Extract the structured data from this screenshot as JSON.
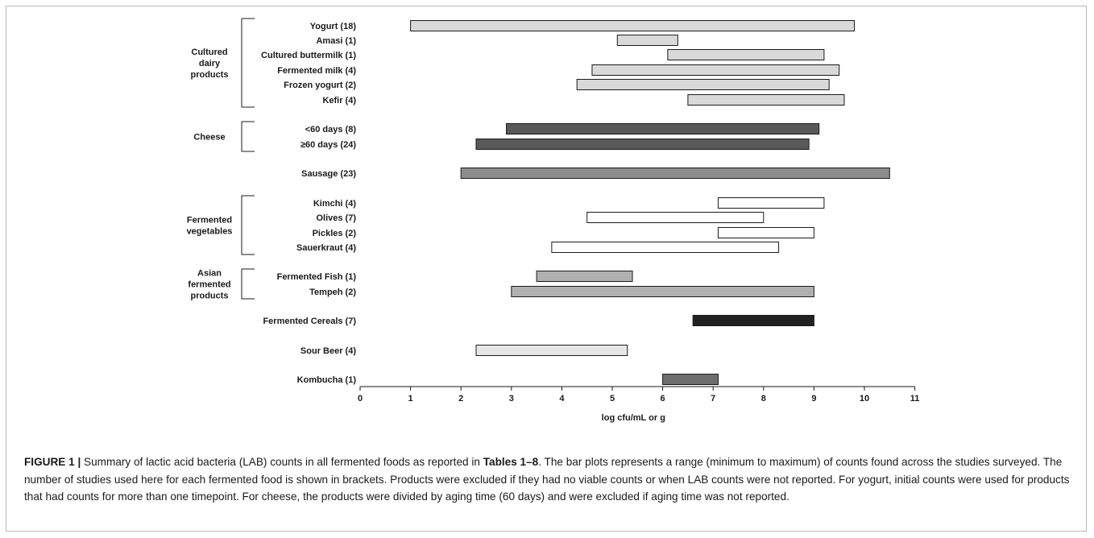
{
  "chart_data": {
    "type": "bar",
    "orientation": "horizontal-range",
    "xlabel": "log cfu/mL or g",
    "xlim": [
      0,
      11
    ],
    "xticks": [
      0,
      1,
      2,
      3,
      4,
      5,
      6,
      7,
      8,
      9,
      10,
      11
    ],
    "groups": [
      {
        "name": "Cultured\ndairy\nproducts",
        "bracket_rows": [
          0,
          5
        ]
      },
      {
        "name": "Cheese",
        "bracket_rows": [
          6,
          7
        ]
      },
      {
        "name": "Fermented\nvegetables",
        "bracket_rows": [
          9,
          12
        ]
      },
      {
        "name": "Asian\nfermented\nproducts",
        "bracket_rows": [
          13,
          14
        ]
      }
    ],
    "series": [
      {
        "category": "Yogurt (18)",
        "min": 1.0,
        "max": 9.8,
        "color": "#d9d9d9"
      },
      {
        "category": "Amasi (1)",
        "min": 5.1,
        "max": 6.3,
        "color": "#d9d9d9"
      },
      {
        "category": "Cultured buttermilk (1)",
        "min": 6.1,
        "max": 9.2,
        "color": "#d9d9d9"
      },
      {
        "category": "Fermented milk (4)",
        "min": 4.6,
        "max": 9.5,
        "color": "#d9d9d9"
      },
      {
        "category": "Frozen yogurt (2)",
        "min": 4.3,
        "max": 9.3,
        "color": "#d9d9d9"
      },
      {
        "category": "Kefir (4)",
        "min": 6.5,
        "max": 9.6,
        "color": "#d9d9d9"
      },
      {
        "category": "<60 days (8)",
        "min": 2.9,
        "max": 9.1,
        "color": "#595959"
      },
      {
        "category": "≥60 days (24)",
        "min": 2.3,
        "max": 8.9,
        "color": "#595959"
      },
      {
        "category": "Sausage (23)",
        "min": 2.0,
        "max": 10.5,
        "color": "#8c8c8c"
      },
      {
        "category": "Kimchi (4)",
        "min": 7.1,
        "max": 9.2,
        "color": "#ffffff"
      },
      {
        "category": "Olives (7)",
        "min": 4.5,
        "max": 8.0,
        "color": "#ffffff"
      },
      {
        "category": "Pickles (2)",
        "min": 7.1,
        "max": 9.0,
        "color": "#ffffff"
      },
      {
        "category": "Sauerkraut (4)",
        "min": 3.8,
        "max": 8.3,
        "color": "#ffffff"
      },
      {
        "category": "Fermented Fish (1)",
        "min": 3.5,
        "max": 5.4,
        "color": "#b0b0b0"
      },
      {
        "category": "Tempeh (2)",
        "min": 3.0,
        "max": 9.0,
        "color": "#b0b0b0"
      },
      {
        "category": "Fermented Cereals (7)",
        "min": 6.6,
        "max": 9.0,
        "color": "#222222"
      },
      {
        "category": "Sour Beer (4)",
        "min": 2.3,
        "max": 5.3,
        "color": "#e6e6e6"
      },
      {
        "category": "Kombucha (1)",
        "min": 6.0,
        "max": 7.1,
        "color": "#6e6e6e"
      }
    ]
  },
  "caption": {
    "label": "FIGURE 1 |",
    "part1": " Summary of lactic acid bacteria (LAB) counts in all fermented foods as reported in ",
    "tables": "Tables 1–8",
    "part2": ". The bar plots represents a range (minimum to maximum) of counts found across the studies surveyed. The number of studies used here for each fermented food is shown in brackets. Products were excluded if they had no viable counts or when LAB counts were not reported. For yogurt, initial counts were used for products that had counts for more than one timepoint. For cheese, the products were divided by aging time (60 days) and were excluded if aging time was not reported."
  }
}
